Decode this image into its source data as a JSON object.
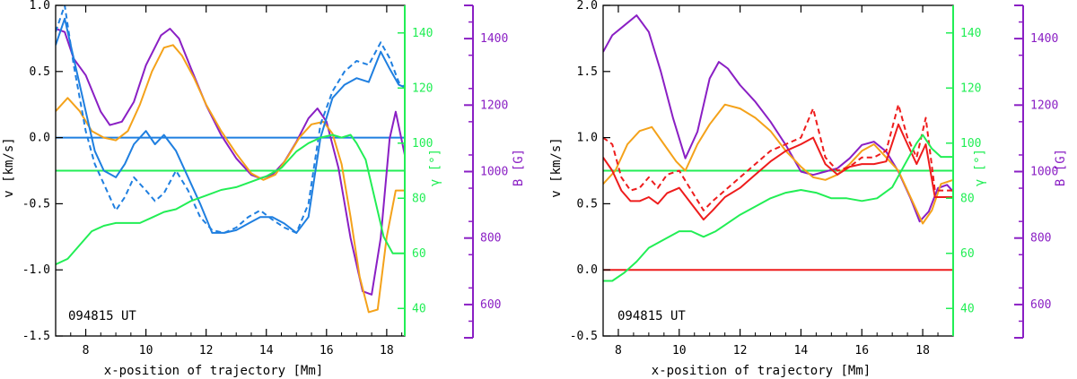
{
  "chart_data": [
    {
      "type": "line",
      "annotation": "094815 UT",
      "xlabel": "x-position of trajectory [Mm]",
      "ylabel_left": "v [km/s]",
      "ylabel_gamma": "γ [°]",
      "ylabel_b": "B [G]",
      "xlim": [
        7.0,
        18.6
      ],
      "ylim": [
        -1.5,
        1.0
      ],
      "gamma_lim": [
        30,
        150
      ],
      "b_lim": [
        500,
        1500
      ],
      "x_ticks": [
        8,
        10,
        12,
        14,
        16,
        18
      ],
      "y_ticks": [
        -1.5,
        -1.0,
        -0.5,
        0.0,
        0.5,
        1.0
      ],
      "gamma_ticks": [
        40,
        60,
        80,
        100,
        120,
        140
      ],
      "b_ticks": [
        600,
        800,
        1000,
        1200,
        1400
      ],
      "hlines": [
        {
          "axis": "v",
          "value": 0.0,
          "color": "#1f7fe0"
        },
        {
          "axis": "gamma",
          "value": 90,
          "color": "#22ee55"
        }
      ],
      "series": [
        {
          "name": "B",
          "axis": "b",
          "color": "#8a1fc4",
          "style": "solid",
          "x": [
            7.0,
            7.3,
            7.6,
            8.0,
            8.5,
            8.8,
            9.2,
            9.6,
            10.0,
            10.5,
            10.8,
            11.1,
            11.5,
            12.0,
            12.5,
            13.0,
            13.5,
            13.8,
            14.2,
            14.6,
            15.0,
            15.4,
            15.7,
            16.0,
            16.4,
            16.8,
            17.2,
            17.5,
            17.8,
            18.1,
            18.3,
            18.6
          ],
          "y": [
            1430,
            1420,
            1340,
            1290,
            1180,
            1140,
            1150,
            1210,
            1320,
            1410,
            1430,
            1400,
            1310,
            1200,
            1110,
            1040,
            990,
            980,
            990,
            1030,
            1090,
            1160,
            1190,
            1150,
            1010,
            800,
            640,
            630,
            800,
            1100,
            1180,
            1050
          ]
        },
        {
          "name": "orange",
          "axis": "v",
          "color": "#f4a21a",
          "style": "solid",
          "x": [
            7.0,
            7.4,
            7.8,
            8.2,
            8.6,
            9.0,
            9.4,
            9.8,
            10.2,
            10.6,
            10.9,
            11.2,
            11.6,
            12.0,
            12.5,
            13.0,
            13.5,
            13.9,
            14.3,
            14.7,
            15.1,
            15.5,
            15.9,
            16.2,
            16.5,
            16.8,
            17.1,
            17.4,
            17.7,
            18.0,
            18.3,
            18.6
          ],
          "y": [
            0.2,
            0.3,
            0.2,
            0.05,
            0.0,
            -0.02,
            0.05,
            0.25,
            0.5,
            0.68,
            0.7,
            0.62,
            0.45,
            0.25,
            0.05,
            -0.12,
            -0.27,
            -0.32,
            -0.28,
            -0.15,
            0.0,
            0.1,
            0.12,
            0.03,
            -0.2,
            -0.6,
            -1.05,
            -1.32,
            -1.3,
            -0.75,
            -0.4,
            -0.4
          ]
        },
        {
          "name": "blue-solid",
          "axis": "v",
          "color": "#1f7fe0",
          "style": "solid",
          "x": [
            7.0,
            7.3,
            7.6,
            8.0,
            8.3,
            8.6,
            9.0,
            9.3,
            9.6,
            10.0,
            10.3,
            10.6,
            11.0,
            11.4,
            11.8,
            12.2,
            12.6,
            13.0,
            13.4,
            13.8,
            14.2,
            14.6,
            15.0,
            15.4,
            15.8,
            16.2,
            16.6,
            17.0,
            17.4,
            17.8,
            18.1,
            18.4,
            18.6
          ],
          "y": [
            0.7,
            0.9,
            0.6,
            0.2,
            -0.1,
            -0.25,
            -0.3,
            -0.2,
            -0.05,
            0.05,
            -0.05,
            0.02,
            -0.1,
            -0.3,
            -0.5,
            -0.72,
            -0.72,
            -0.7,
            -0.65,
            -0.6,
            -0.6,
            -0.65,
            -0.72,
            -0.6,
            0.0,
            0.3,
            0.4,
            0.45,
            0.42,
            0.65,
            0.52,
            0.4,
            0.38
          ]
        },
        {
          "name": "blue-dashed",
          "axis": "v",
          "color": "#1f7fe0",
          "style": "dashed",
          "x": [
            7.0,
            7.3,
            7.6,
            8.0,
            8.3,
            8.6,
            9.0,
            9.3,
            9.6,
            10.0,
            10.3,
            10.6,
            11.0,
            11.4,
            11.8,
            12.2,
            12.6,
            13.0,
            13.4,
            13.8,
            14.2,
            14.6,
            15.0,
            15.4,
            15.8,
            16.2,
            16.6,
            17.0,
            17.4,
            17.8,
            18.1,
            18.4,
            18.6
          ],
          "y": [
            0.8,
            1.0,
            0.55,
            0.05,
            -0.2,
            -0.35,
            -0.55,
            -0.45,
            -0.3,
            -0.4,
            -0.48,
            -0.42,
            -0.25,
            -0.4,
            -0.6,
            -0.7,
            -0.72,
            -0.68,
            -0.6,
            -0.55,
            -0.62,
            -0.68,
            -0.72,
            -0.5,
            0.1,
            0.35,
            0.5,
            0.58,
            0.55,
            0.72,
            0.6,
            0.42,
            0.38
          ]
        },
        {
          "name": "gamma",
          "axis": "gamma",
          "color": "#22ee55",
          "style": "solid",
          "x": [
            7.0,
            7.4,
            7.8,
            8.2,
            8.6,
            9.0,
            9.4,
            9.8,
            10.2,
            10.6,
            11.0,
            11.5,
            12.0,
            12.5,
            13.0,
            13.5,
            14.0,
            14.5,
            15.0,
            15.4,
            15.8,
            16.2,
            16.5,
            16.8,
            17.0,
            17.3,
            17.6,
            17.9,
            18.2,
            18.6
          ],
          "y": [
            56,
            58,
            63,
            68,
            70,
            71,
            71,
            71,
            73,
            75,
            76,
            79,
            81,
            83,
            84,
            86,
            88,
            91,
            97,
            100,
            102,
            103,
            102,
            103,
            100,
            94,
            80,
            66,
            60,
            60
          ]
        }
      ]
    },
    {
      "type": "line",
      "annotation": "094815 UT",
      "xlabel": "x-position of trajectory [Mm]",
      "ylabel_left": "v [km/s]",
      "ylabel_gamma": "γ [°]",
      "ylabel_b": "B [G]",
      "xlim": [
        7.5,
        19.0
      ],
      "ylim": [
        -0.5,
        2.0
      ],
      "gamma_lim": [
        30,
        150
      ],
      "b_lim": [
        500,
        1500
      ],
      "x_ticks": [
        8,
        10,
        12,
        14,
        16,
        18
      ],
      "y_ticks": [
        -0.5,
        0.0,
        0.5,
        1.0,
        1.5,
        2.0
      ],
      "gamma_ticks": [
        40,
        60,
        80,
        100,
        120,
        140
      ],
      "b_ticks": [
        600,
        800,
        1000,
        1200,
        1400
      ],
      "hlines": [
        {
          "axis": "v",
          "value": 0.0,
          "color": "#ee1c1c"
        },
        {
          "axis": "gamma",
          "value": 90,
          "color": "#22ee55"
        }
      ],
      "series": [
        {
          "name": "B",
          "axis": "b",
          "color": "#8a1fc4",
          "style": "solid",
          "x": [
            7.5,
            7.8,
            8.2,
            8.6,
            9.0,
            9.4,
            9.8,
            10.2,
            10.6,
            11.0,
            11.3,
            11.6,
            12.0,
            12.5,
            13.0,
            13.5,
            14.0,
            14.4,
            14.8,
            15.2,
            15.6,
            16.0,
            16.4,
            16.8,
            17.2,
            17.6,
            17.9,
            18.2,
            18.5,
            18.8,
            19.0
          ],
          "y": [
            1360,
            1410,
            1440,
            1470,
            1420,
            1300,
            1160,
            1040,
            1120,
            1280,
            1330,
            1310,
            1260,
            1210,
            1150,
            1080,
            1000,
            990,
            1000,
            1010,
            1040,
            1080,
            1090,
            1060,
            1000,
            920,
            850,
            880,
            950,
            960,
            940
          ]
        },
        {
          "name": "orange",
          "axis": "v",
          "color": "#f4a21a",
          "style": "solid",
          "x": [
            7.5,
            7.9,
            8.3,
            8.7,
            9.1,
            9.5,
            9.9,
            10.2,
            10.6,
            11.0,
            11.5,
            12.0,
            12.5,
            13.0,
            13.5,
            14.0,
            14.4,
            14.8,
            15.2,
            15.6,
            16.0,
            16.4,
            16.8,
            17.2,
            17.6,
            18.0,
            18.3,
            18.6,
            19.0
          ],
          "y": [
            0.65,
            0.75,
            0.95,
            1.05,
            1.08,
            0.95,
            0.82,
            0.75,
            0.95,
            1.1,
            1.25,
            1.22,
            1.15,
            1.05,
            0.9,
            0.78,
            0.7,
            0.68,
            0.72,
            0.8,
            0.9,
            0.95,
            0.85,
            0.75,
            0.55,
            0.35,
            0.45,
            0.65,
            0.68
          ]
        },
        {
          "name": "red-solid",
          "axis": "v",
          "color": "#ee1c1c",
          "style": "solid",
          "x": [
            7.5,
            7.8,
            8.1,
            8.4,
            8.7,
            9.0,
            9.3,
            9.6,
            10.0,
            10.4,
            10.8,
            11.1,
            11.5,
            12.0,
            12.5,
            13.0,
            13.5,
            14.0,
            14.4,
            14.8,
            15.2,
            15.6,
            16.0,
            16.4,
            16.8,
            17.2,
            17.5,
            17.8,
            18.1,
            18.4,
            18.7,
            19.0
          ],
          "y": [
            0.85,
            0.75,
            0.6,
            0.52,
            0.52,
            0.55,
            0.5,
            0.58,
            0.62,
            0.5,
            0.38,
            0.45,
            0.55,
            0.62,
            0.72,
            0.82,
            0.9,
            0.95,
            1.0,
            0.8,
            0.72,
            0.78,
            0.8,
            0.8,
            0.82,
            1.1,
            0.95,
            0.8,
            0.95,
            0.55,
            0.55,
            0.55
          ]
        },
        {
          "name": "red-dashed",
          "axis": "v",
          "color": "#ee1c1c",
          "style": "dashed",
          "x": [
            7.5,
            7.8,
            8.1,
            8.4,
            8.7,
            9.0,
            9.3,
            9.6,
            10.0,
            10.4,
            10.8,
            11.1,
            11.5,
            12.0,
            12.5,
            13.0,
            13.5,
            14.0,
            14.4,
            14.8,
            15.2,
            15.6,
            16.0,
            16.4,
            16.8,
            17.2,
            17.5,
            17.8,
            18.1,
            18.4,
            18.7,
            19.0
          ],
          "y": [
            1.0,
            0.95,
            0.7,
            0.6,
            0.62,
            0.7,
            0.62,
            0.72,
            0.75,
            0.6,
            0.45,
            0.52,
            0.6,
            0.7,
            0.8,
            0.9,
            0.95,
            1.0,
            1.22,
            0.85,
            0.75,
            0.78,
            0.85,
            0.85,
            0.9,
            1.25,
            1.0,
            0.85,
            1.15,
            0.6,
            0.6,
            0.6
          ]
        },
        {
          "name": "gamma",
          "axis": "gamma",
          "color": "#22ee55",
          "style": "solid",
          "x": [
            7.5,
            7.8,
            8.2,
            8.6,
            9.0,
            9.5,
            10.0,
            10.4,
            10.8,
            11.2,
            11.6,
            12.0,
            12.5,
            13.0,
            13.5,
            14.0,
            14.5,
            15.0,
            15.5,
            16.0,
            16.5,
            17.0,
            17.4,
            17.8,
            18.0,
            18.3,
            18.6,
            19.0
          ],
          "y": [
            50,
            50,
            53,
            57,
            62,
            65,
            68,
            68,
            66,
            68,
            71,
            74,
            77,
            80,
            82,
            83,
            82,
            80,
            80,
            79,
            80,
            84,
            92,
            100,
            103,
            98,
            95,
            95
          ]
        }
      ]
    }
  ]
}
